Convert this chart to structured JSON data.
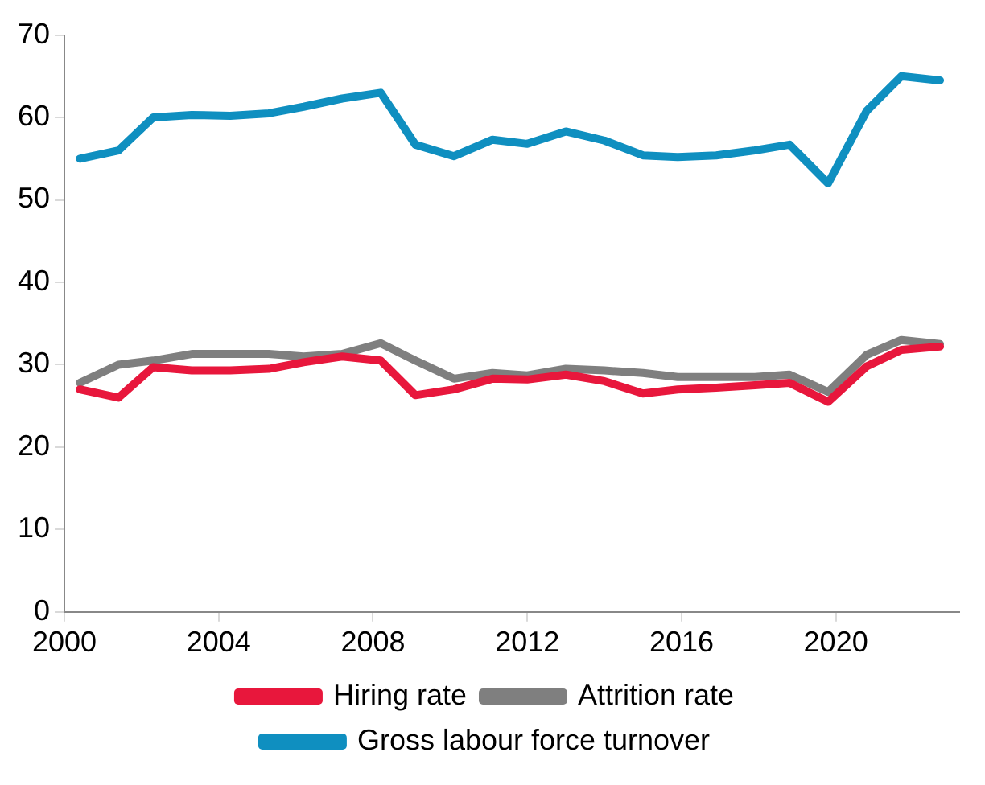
{
  "chart_data": {
    "type": "line",
    "x": [
      2000.4,
      2001.4,
      2002.3,
      2003.3,
      2004.3,
      2005.3,
      2006.2,
      2007.2,
      2008.2,
      2009.1,
      2010.1,
      2011.1,
      2012.0,
      2013.0,
      2014.0,
      2015.0,
      2015.9,
      2016.9,
      2017.9,
      2018.8,
      2019.8,
      2020.8,
      2021.7,
      2022.7
    ],
    "series": [
      {
        "name": "Hiring rate",
        "color": "#e8173c",
        "values": [
          27,
          26,
          29.7,
          29.3,
          29.3,
          29.5,
          30.3,
          31,
          30.5,
          26.3,
          27,
          28.3,
          28.2,
          28.8,
          28,
          26.5,
          27,
          27.2,
          27.5,
          27.8,
          25.5,
          29.8,
          31.8,
          32.2
        ]
      },
      {
        "name": "Attrition rate",
        "color": "#7f7f7f",
        "values": [
          27.8,
          30,
          30.5,
          31.3,
          31.3,
          31.3,
          31,
          31.3,
          32.6,
          30.5,
          28.3,
          29,
          28.7,
          29.5,
          29.3,
          29,
          28.5,
          28.5,
          28.5,
          28.8,
          26.7,
          31.2,
          33,
          32.5
        ]
      },
      {
        "name": "Gross labour force turnover",
        "color": "#0f8fc0",
        "values": [
          55,
          56,
          60,
          60.3,
          60.2,
          60.5,
          61.3,
          62.3,
          63,
          56.7,
          55.3,
          57.3,
          56.8,
          58.3,
          57.2,
          55.4,
          55.2,
          55.4,
          56,
          56.7,
          52,
          60.8,
          65,
          64.5
        ]
      }
    ],
    "xlim": [
      2000,
      2023.2
    ],
    "xticks": [
      2000,
      2004,
      2008,
      2012,
      2016,
      2020
    ],
    "ylim": [
      0,
      70
    ],
    "yticks": [
      0,
      10,
      20,
      30,
      40,
      50,
      60,
      70
    ],
    "grid": false,
    "legend": "bottom",
    "marker": "none",
    "line_style": "solid"
  }
}
